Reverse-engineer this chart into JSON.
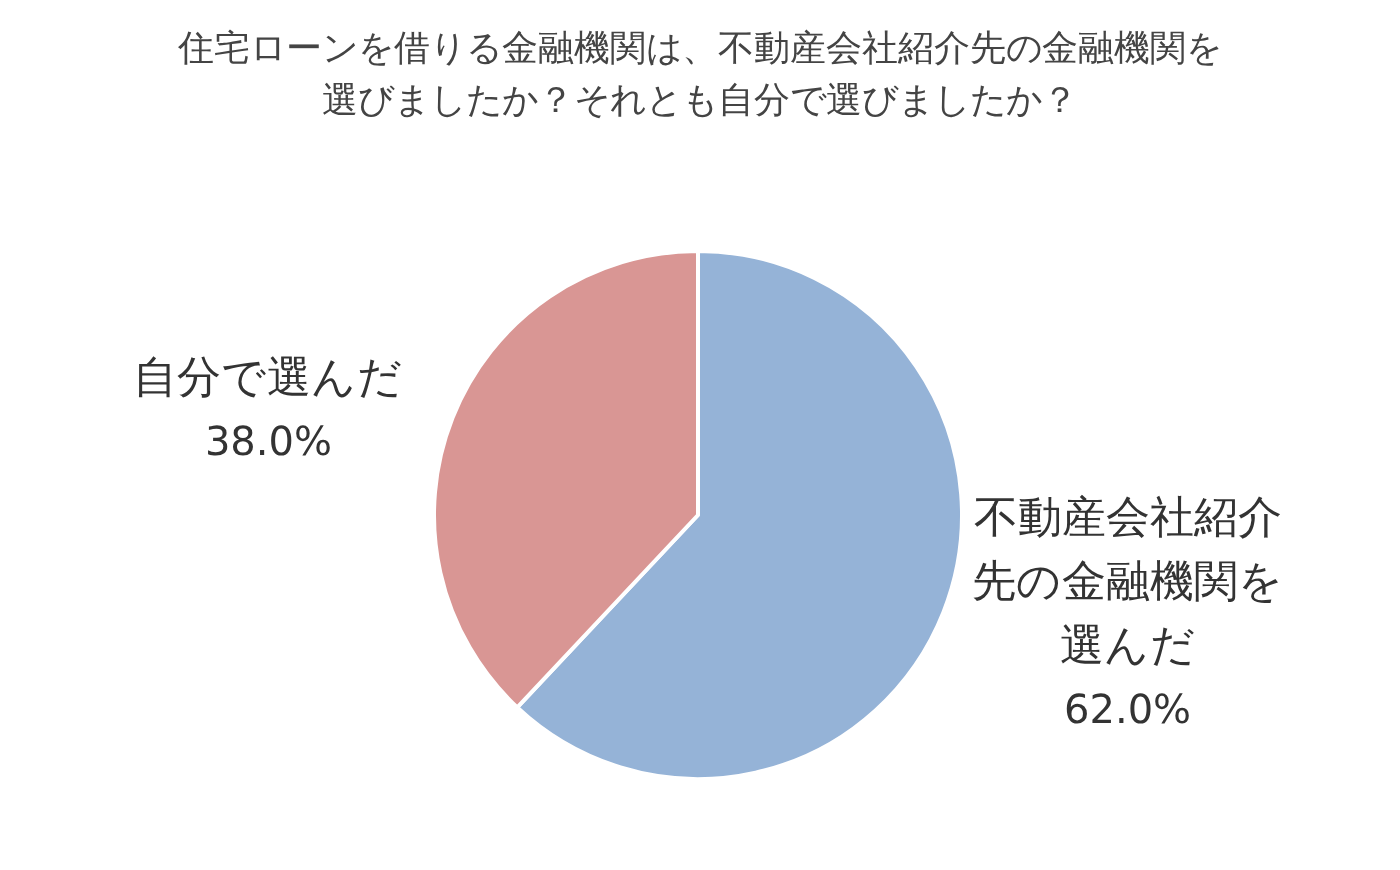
{
  "chart_data": {
    "type": "pie",
    "title": "住宅ローンを借りる金融機関は、不動産会社紹介先の金融機関を選びましたか？それとも自分で選びましたか？",
    "categories": [
      "不動産会社紹介先の金融機関を選んだ",
      "自分で選んだ"
    ],
    "values": [
      62,
      38
    ],
    "colors": [
      "#95b3d7",
      "#d99694"
    ],
    "value_labels": [
      "62.0%",
      "38.0%"
    ],
    "legend": false
  }
}
